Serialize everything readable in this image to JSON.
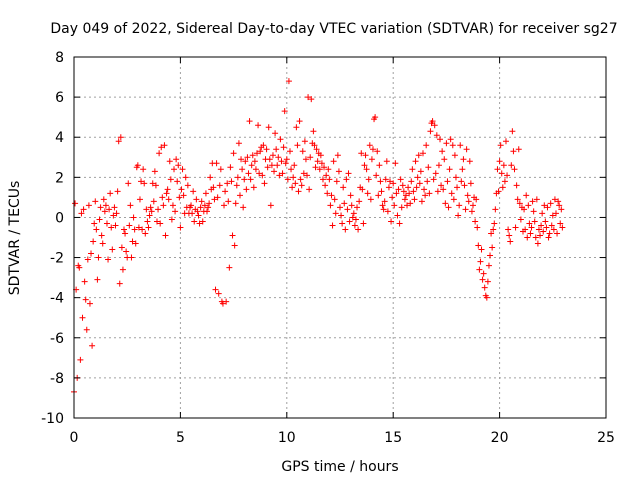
{
  "chart_data": {
    "type": "scatter",
    "title": "Day 049 of 2022, Sidereal Day-to-day VTEC variation (SDTVAR) for receiver sg27",
    "xlabel": "GPS time / hours",
    "ylabel": "SDTVAR / TECUs",
    "xlim": [
      0,
      25
    ],
    "ylim": [
      -10,
      8
    ],
    "xticks": [
      0,
      5,
      10,
      15,
      20,
      25
    ],
    "yticks": [
      -10,
      -8,
      -6,
      -4,
      -2,
      0,
      2,
      4,
      6,
      8
    ],
    "xtick_labels": [
      "0",
      "5",
      "10",
      "15",
      "20",
      "25"
    ],
    "ytick_labels": [
      "-10",
      "-8",
      "-6",
      "-4",
      "-2",
      "0",
      "2",
      "4",
      "6",
      "8"
    ],
    "grid": true,
    "marker": "+",
    "color": "#ff0000",
    "series": [
      {
        "name": "sg27 SDTVAR",
        "x": [
          0.0,
          0.05,
          0.1,
          0.15,
          0.2,
          0.25,
          0.3,
          0.35,
          0.4,
          0.45,
          0.5,
          0.55,
          0.6,
          0.65,
          0.7,
          0.75,
          0.8,
          0.85,
          0.9,
          0.95,
          1.0,
          1.05,
          1.1,
          1.15,
          1.2,
          1.25,
          1.3,
          1.35,
          1.4,
          1.45,
          1.5,
          1.55,
          1.6,
          1.65,
          1.7,
          1.75,
          1.8,
          1.85,
          1.9,
          1.95,
          2.0,
          2.05,
          2.1,
          2.15,
          2.2,
          2.25,
          2.3,
          2.35,
          2.4,
          2.45,
          2.5,
          2.55,
          2.6,
          2.65,
          2.7,
          2.75,
          2.8,
          2.85,
          2.9,
          2.95,
          3.0,
          3.05,
          3.1,
          3.15,
          3.2,
          3.25,
          3.3,
          3.35,
          3.4,
          3.45,
          3.5,
          3.55,
          3.6,
          3.65,
          3.7,
          3.75,
          3.8,
          3.85,
          3.9,
          3.95,
          4.0,
          4.05,
          4.1,
          4.15,
          4.2,
          4.25,
          4.3,
          4.35,
          4.4,
          4.45,
          4.5,
          4.55,
          4.6,
          4.65,
          4.7,
          4.75,
          4.8,
          4.85,
          4.9,
          4.95,
          5.0,
          5.05,
          5.1,
          5.15,
          5.2,
          5.25,
          5.3,
          5.35,
          5.4,
          5.45,
          5.5,
          5.55,
          5.6,
          5.65,
          5.7,
          5.75,
          5.8,
          5.85,
          5.9,
          5.95,
          6.0,
          6.05,
          6.1,
          6.15,
          6.2,
          6.25,
          6.3,
          6.35,
          6.4,
          6.45,
          6.5,
          6.55,
          6.6,
          6.65,
          6.7,
          6.75,
          6.8,
          6.85,
          6.9,
          6.95,
          7.0,
          7.05,
          7.1,
          7.15,
          7.2,
          7.25,
          7.3,
          7.35,
          7.4,
          7.45,
          7.5,
          7.55,
          7.6,
          7.65,
          7.7,
          7.75,
          7.8,
          7.85,
          7.9,
          7.95,
          8.0,
          8.05,
          8.1,
          8.15,
          8.2,
          8.25,
          8.3,
          8.35,
          8.4,
          8.45,
          8.5,
          8.55,
          8.6,
          8.65,
          8.7,
          8.75,
          8.8,
          8.85,
          8.9,
          8.95,
          9.0,
          9.05,
          9.1,
          9.15,
          9.2,
          9.25,
          9.3,
          9.35,
          9.4,
          9.45,
          9.5,
          9.55,
          9.6,
          9.65,
          9.7,
          9.75,
          9.8,
          9.85,
          9.9,
          9.95,
          10.0,
          10.05,
          10.1,
          10.15,
          10.2,
          10.25,
          10.3,
          10.35,
          10.4,
          10.45,
          10.5,
          10.55,
          10.6,
          10.65,
          10.7,
          10.75,
          10.8,
          10.85,
          10.9,
          10.95,
          11.0,
          11.05,
          11.1,
          11.15,
          11.2,
          11.25,
          11.3,
          11.35,
          11.4,
          11.45,
          11.5,
          11.55,
          11.6,
          11.65,
          11.7,
          11.75,
          11.8,
          11.85,
          11.9,
          11.95,
          12.0,
          12.05,
          12.1,
          12.15,
          12.2,
          12.25,
          12.3,
          12.35,
          12.4,
          12.45,
          12.5,
          12.55,
          12.6,
          12.65,
          12.7,
          12.75,
          12.8,
          12.85,
          12.9,
          12.95,
          13.0,
          13.05,
          13.1,
          13.15,
          13.2,
          13.25,
          13.3,
          13.35,
          13.4,
          13.45,
          13.5,
          13.55,
          13.6,
          13.65,
          13.7,
          13.75,
          13.8,
          13.85,
          13.9,
          13.95,
          14.0,
          14.05,
          14.1,
          14.15,
          14.2,
          14.25,
          14.3,
          14.35,
          14.4,
          14.45,
          14.5,
          14.55,
          14.6,
          14.65,
          14.7,
          14.75,
          14.8,
          14.85,
          14.9,
          14.95,
          15.0,
          15.05,
          15.1,
          15.15,
          15.2,
          15.25,
          15.3,
          15.35,
          15.4,
          15.45,
          15.5,
          15.55,
          15.6,
          15.65,
          15.7,
          15.75,
          15.8,
          15.85,
          15.9,
          15.95,
          16.0,
          16.05,
          16.1,
          16.15,
          16.2,
          16.25,
          16.3,
          16.35,
          16.4,
          16.45,
          16.5,
          16.55,
          16.6,
          16.65,
          16.7,
          16.75,
          16.8,
          16.85,
          16.9,
          16.95,
          17.0,
          17.05,
          17.1,
          17.15,
          17.2,
          17.25,
          17.3,
          17.35,
          17.4,
          17.45,
          17.5,
          17.55,
          17.6,
          17.65,
          17.7,
          17.75,
          17.8,
          17.85,
          17.9,
          17.95,
          18.0,
          18.05,
          18.1,
          18.15,
          18.2,
          18.25,
          18.3,
          18.35,
          18.4,
          18.45,
          18.5,
          18.55,
          18.6,
          18.65,
          18.7,
          18.75,
          18.8,
          18.85,
          18.9,
          18.95,
          19.0,
          19.05,
          19.1,
          19.15,
          19.2,
          19.25,
          19.3,
          19.35,
          19.4,
          19.45,
          19.5,
          19.55,
          19.6,
          19.65,
          19.7,
          19.75,
          19.8,
          19.85,
          19.9,
          19.95,
          20.0,
          20.05,
          20.1,
          20.15,
          20.2,
          20.25,
          20.3,
          20.35,
          20.4,
          20.45,
          20.5,
          20.55,
          20.6,
          20.65,
          20.7,
          20.75,
          20.8,
          20.85,
          20.9,
          20.95,
          21.0,
          21.05,
          21.1,
          21.15,
          21.2,
          21.25,
          21.3,
          21.35,
          21.4,
          21.45,
          21.5,
          21.55,
          21.6,
          21.65,
          21.7,
          21.75,
          21.8,
          21.85,
          21.9,
          21.95,
          22.0,
          22.05,
          22.1,
          22.15,
          22.2,
          22.25,
          22.3,
          22.35,
          22.4,
          22.45,
          22.5,
          22.55,
          22.6,
          22.65,
          22.7,
          22.75,
          22.8,
          22.85,
          22.9,
          22.95
        ],
        "y": [
          -8.7,
          0.7,
          -3.6,
          -8.0,
          -2.4,
          -2.5,
          -7.1,
          0.2,
          -5.0,
          0.4,
          -3.2,
          -4.1,
          -5.6,
          -2.1,
          0.6,
          -4.3,
          -1.8,
          -6.4,
          -1.2,
          -0.3,
          0.8,
          -0.6,
          -3.1,
          -2.0,
          -0.1,
          0.5,
          -0.9,
          -1.3,
          0.9,
          0.3,
          0.6,
          -0.3,
          -2.1,
          0.4,
          1.2,
          -0.5,
          -1.6,
          0.1,
          0.5,
          -0.4,
          0.2,
          1.3,
          3.8,
          -3.3,
          4.0,
          -1.5,
          -2.6,
          -0.6,
          -0.8,
          -1.7,
          -2.0,
          1.7,
          -0.4,
          0.6,
          -2.0,
          -1.2,
          0.0,
          -0.6,
          -1.3,
          2.5,
          2.6,
          -0.5,
          0.9,
          1.8,
          -0.6,
          2.4,
          1.7,
          -0.8,
          0.4,
          -0.2,
          -0.5,
          0.1,
          0.5,
          0.3,
          1.7,
          0.8,
          2.3,
          1.6,
          -0.2,
          0.4,
          3.2,
          -0.3,
          3.5,
          1.0,
          0.6,
          3.6,
          -0.9,
          1.2,
          1.4,
          0.9,
          2.8,
          1.9,
          -0.1,
          0.6,
          2.4,
          0.3,
          2.9,
          1.8,
          2.6,
          1.0,
          -0.5,
          1.4,
          2.4,
          1.1,
          0.2,
          2.0,
          0.5,
          1.6,
          0.2,
          0.5,
          0.6,
          0.2,
          1.3,
          -0.2,
          0.4,
          0.9,
          0.3,
          0.1,
          -0.3,
          0.5,
          0.8,
          -0.2,
          0.3,
          0.6,
          1.2,
          0.3,
          0.5,
          0.7,
          2.0,
          1.4,
          2.7,
          1.5,
          0.9,
          -3.6,
          2.7,
          1.0,
          -3.8,
          1.6,
          2.4,
          -4.2,
          -4.3,
          0.6,
          1.3,
          -4.2,
          1.7,
          0.8,
          -2.5,
          2.5,
          1.8,
          -0.9,
          3.2,
          -1.4,
          0.7,
          1.6,
          2.0,
          3.7,
          1.1,
          2.9,
          2.4,
          0.5,
          1.9,
          2.8,
          1.4,
          3.0,
          2.2,
          4.8,
          1.9,
          2.6,
          3.1,
          1.5,
          2.8,
          2.4,
          3.2,
          4.6,
          2.2,
          3.3,
          3.5,
          2.1,
          3.6,
          1.7,
          2.9,
          3.4,
          2.5,
          4.5,
          2.9,
          0.6,
          2.6,
          3.1,
          2.3,
          4.2,
          3.4,
          2.6,
          3.0,
          2.1,
          3.9,
          2.8,
          2.2,
          3.5,
          5.3,
          2.7,
          2.9,
          1.9,
          6.8,
          3.3,
          2.4,
          1.5,
          2.0,
          2.6,
          1.7,
          4.5,
          3.6,
          1.3,
          4.8,
          1.9,
          1.6,
          3.3,
          2.2,
          3.8,
          2.9,
          2.1,
          6.0,
          1.4,
          3.0,
          5.9,
          3.7,
          4.3,
          3.6,
          2.5,
          3.4,
          2.8,
          3.2,
          2.4,
          3.1,
          2.7,
          1.9,
          2.5,
          1.6,
          2.1,
          1.2,
          2.4,
          1.9,
          0.6,
          1.1,
          -0.4,
          2.8,
          0.9,
          0.2,
          1.8,
          3.1,
          2.3,
          0.5,
          0.1,
          -0.3,
          1.5,
          0.7,
          -0.6,
          1.9,
          0.4,
          2.2,
          -0.2,
          1.1,
          0.6,
          0.0,
          0.2,
          -0.4,
          -0.1,
          0.5,
          -0.6,
          0.8,
          1.5,
          3.2,
          1.4,
          -0.3,
          2.6,
          3.1,
          2.4,
          1.2,
          1.9,
          3.6,
          0.9,
          2.9,
          3.4,
          4.9,
          5.0,
          2.1,
          3.3,
          1.1,
          2.6,
          1.8,
          1.3,
          0.6,
          0.4,
          0.8,
          1.9,
          2.8,
          0.3,
          1.5,
          1.8,
          -0.2,
          1.0,
          1.7,
          0.6,
          2.7,
          1.2,
          0.1,
          1.4,
          -0.3,
          1.9,
          0.5,
          1.6,
          1.3,
          0.9,
          1.1,
          0.6,
          1.5,
          1.2,
          0.7,
          1.8,
          2.4,
          1.3,
          0.9,
          2.8,
          1.5,
          2.0,
          3.1,
          1.7,
          2.3,
          0.8,
          3.2,
          1.4,
          1.1,
          3.6,
          1.8,
          2.5,
          1.2,
          4.3,
          4.7,
          4.8,
          1.9,
          4.6,
          2.2,
          4.1,
          1.3,
          2.6,
          3.9,
          1.6,
          3.3,
          1.4,
          2.9,
          0.7,
          3.7,
          1.8,
          0.5,
          2.4,
          3.9,
          1.2,
          3.6,
          0.9,
          3.1,
          2.0,
          1.5,
          0.1,
          0.6,
          3.6,
          1.8,
          2.4,
          2.9,
          1.6,
          0.4,
          3.4,
          1.1,
          0.8,
          2.8,
          1.7,
          0.3,
          0.6,
          1.0,
          -0.2,
          0.9,
          -0.5,
          -1.4,
          -2.6,
          -2.2,
          -1.6,
          -3.1,
          -2.8,
          -3.5,
          -3.9,
          -4.0,
          -3.2,
          -2.4,
          -1.9,
          -0.8,
          -1.5,
          -0.6,
          -0.3,
          0.4,
          1.2,
          2.4,
          1.3,
          2.8,
          3.6,
          2.2,
          1.5,
          2.6,
          1.8,
          3.8,
          2.1,
          -0.6,
          -0.9,
          -1.2,
          2.6,
          4.3,
          3.3,
          2.4,
          -0.5,
          1.6,
          0.9,
          3.4,
          0.7,
          -0.1,
          0.5,
          -0.7,
          0.4,
          -0.6,
          1.1,
          -1.0,
          0.6,
          -0.3,
          -0.8,
          -0.5,
          0.8,
          0.3,
          -0.2,
          -1.0,
          0.9,
          -1.3,
          -0.6,
          -0.9,
          -0.4,
          0.2,
          -0.7,
          0.6,
          -0.2,
          -0.5,
          0.5,
          -1.0,
          -0.8,
          0.7,
          -0.4,
          0.1,
          -0.6,
          0.9,
          0.2,
          -0.8,
          0.8,
          0.6,
          -0.3,
          0.4,
          -0.5
        ]
      }
    ]
  }
}
